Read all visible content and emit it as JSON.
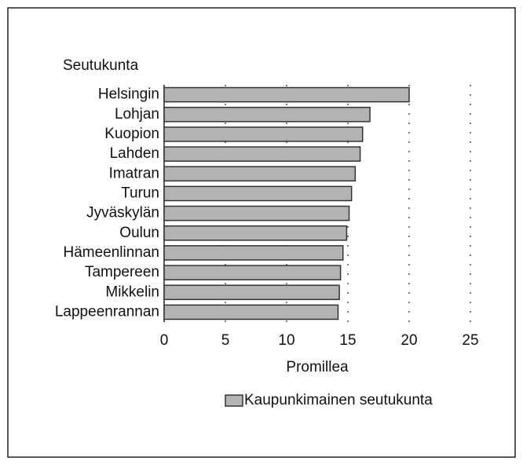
{
  "chart_data": {
    "type": "bar",
    "orientation": "horizontal",
    "y_axis_label": "Seutukunta",
    "x_axis_label": "Promillea",
    "categories": [
      "Helsingin",
      "Lohjan",
      "Kuopion",
      "Lahden",
      "Imatran",
      "Turun",
      "Jyväskylän",
      "Oulun",
      "Hämeenlinnan",
      "Tampereen",
      "Mikkelin",
      "Lappeenrannan"
    ],
    "series": [
      {
        "name": "Kaupunkimainen seutukunta",
        "color": "#b3b3b3",
        "values": [
          20.0,
          16.8,
          16.2,
          16.0,
          15.6,
          15.3,
          15.1,
          14.9,
          14.6,
          14.4,
          14.3,
          14.2
        ]
      }
    ],
    "xlim": [
      0,
      25
    ],
    "xticks": [
      0,
      5,
      10,
      15,
      20,
      25
    ],
    "grid": true,
    "legend": "bottom"
  }
}
